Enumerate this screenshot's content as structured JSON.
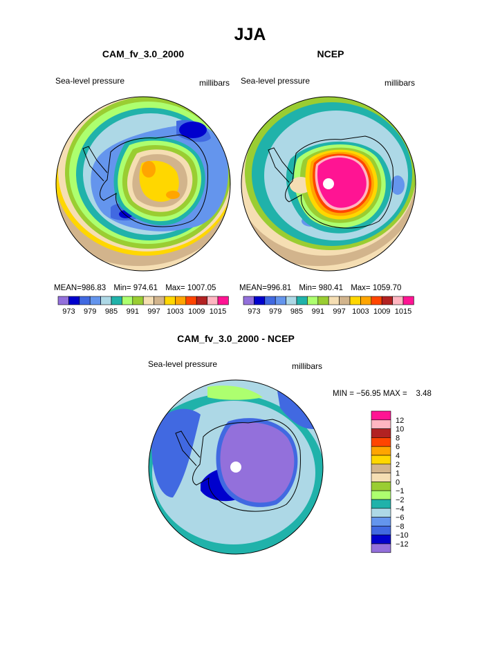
{
  "chart_data": [
    {
      "type": "polar-contour-map",
      "title": "CAM_fv_3.0_2000",
      "left_label": "Sea-level pressure",
      "right_label": "millibars",
      "stats": {
        "mean": "986.83",
        "min": "974.61",
        "max": "1007.05"
      },
      "stats_text": {
        "mean_label": "MEAN=",
        "min_label": "Min=",
        "max_label": "Max="
      },
      "colorbar_labels": [
        "973",
        "979",
        "985",
        "991",
        "997",
        "1003",
        "1009",
        "1015"
      ]
    },
    {
      "type": "polar-contour-map",
      "title": "NCEP",
      "left_label": "Sea-level pressure",
      "right_label": "millibars",
      "stats": {
        "mean": "996.81",
        "min": "980.41",
        "max": "1059.70"
      },
      "stats_text": {
        "mean_label": "MEAN=",
        "min_label": "Min=",
        "max_label": "Max="
      },
      "colorbar_labels": [
        "973",
        "979",
        "985",
        "991",
        "997",
        "1003",
        "1009",
        "1015"
      ]
    },
    {
      "type": "polar-contour-map",
      "title": "CAM_fv_3.0_2000 - NCEP",
      "left_label": "Sea-level pressure",
      "right_label": "millibars",
      "min_max_text": "MIN = −56.95 MAX =    3.48",
      "stats": {
        "min": "-56.95",
        "max": "3.48"
      },
      "colorbar_labels": [
        "12",
        "10",
        "8",
        "6",
        "4",
        "2",
        "1",
        "0",
        "−1",
        "−2",
        "−4",
        "−6",
        "−8",
        "−10",
        "−12"
      ]
    }
  ],
  "page": {
    "season": "JJA"
  },
  "colors": {
    "abs_scale": [
      "#9370db",
      "#0000cd",
      "#4169e1",
      "#6495ed",
      "#add8e6",
      "#20b2aa",
      "#adff6f",
      "#9acd32",
      "#f5deb3",
      "#d2b48c",
      "#ffd700",
      "#ffa500",
      "#ff4500",
      "#b22222",
      "#ffb6c1",
      "#ff1493"
    ],
    "diff_scale": [
      "#ff1493",
      "#ffb6c1",
      "#b22222",
      "#ff4500",
      "#ffa500",
      "#ffd700",
      "#d2b48c",
      "#f5deb3",
      "#9acd32",
      "#adff6f",
      "#20b2aa",
      "#add8e6",
      "#6495ed",
      "#4169e1",
      "#0000cd",
      "#9370db"
    ]
  }
}
